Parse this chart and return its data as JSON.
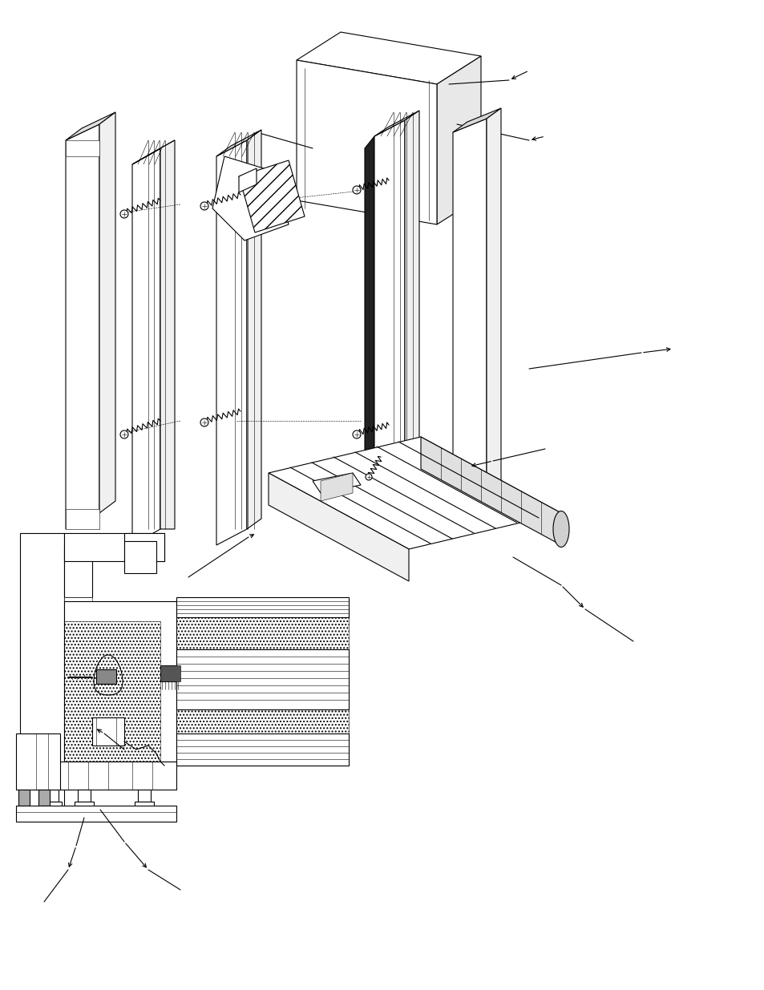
{
  "background_color": "#ffffff",
  "line_color": "#000000",
  "lw": 0.8,
  "lw_thick": 1.4,
  "lw_thin": 0.4,
  "figsize": [
    9.54,
    12.35
  ],
  "dpi": 100
}
